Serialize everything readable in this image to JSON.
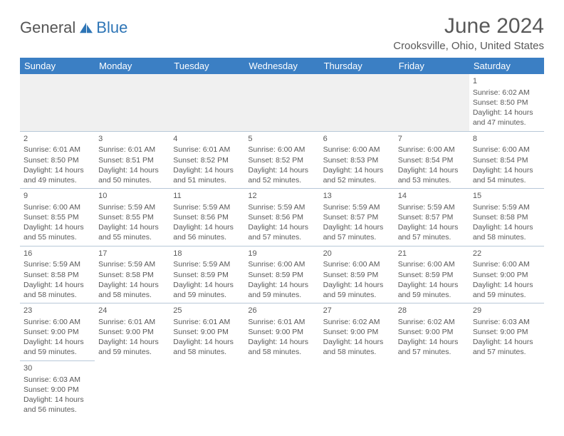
{
  "logo": {
    "text1": "General",
    "text2": "Blue"
  },
  "title": "June 2024",
  "location": "Crooksville, Ohio, United States",
  "colors": {
    "header_bg": "#3b7fc4",
    "header_fg": "#ffffff",
    "text": "#595959",
    "border": "#b8c8d8",
    "firstrow_bg": "#f0f0f0",
    "logo_blue": "#2e75b6"
  },
  "daynames": [
    "Sunday",
    "Monday",
    "Tuesday",
    "Wednesday",
    "Thursday",
    "Friday",
    "Saturday"
  ],
  "weeks": [
    [
      null,
      null,
      null,
      null,
      null,
      null,
      {
        "n": "1",
        "sr": "6:02 AM",
        "ss": "8:50 PM",
        "dl": "14 hours and 47 minutes."
      }
    ],
    [
      {
        "n": "2",
        "sr": "6:01 AM",
        "ss": "8:50 PM",
        "dl": "14 hours and 49 minutes."
      },
      {
        "n": "3",
        "sr": "6:01 AM",
        "ss": "8:51 PM",
        "dl": "14 hours and 50 minutes."
      },
      {
        "n": "4",
        "sr": "6:01 AM",
        "ss": "8:52 PM",
        "dl": "14 hours and 51 minutes."
      },
      {
        "n": "5",
        "sr": "6:00 AM",
        "ss": "8:52 PM",
        "dl": "14 hours and 52 minutes."
      },
      {
        "n": "6",
        "sr": "6:00 AM",
        "ss": "8:53 PM",
        "dl": "14 hours and 52 minutes."
      },
      {
        "n": "7",
        "sr": "6:00 AM",
        "ss": "8:54 PM",
        "dl": "14 hours and 53 minutes."
      },
      {
        "n": "8",
        "sr": "6:00 AM",
        "ss": "8:54 PM",
        "dl": "14 hours and 54 minutes."
      }
    ],
    [
      {
        "n": "9",
        "sr": "6:00 AM",
        "ss": "8:55 PM",
        "dl": "14 hours and 55 minutes."
      },
      {
        "n": "10",
        "sr": "5:59 AM",
        "ss": "8:55 PM",
        "dl": "14 hours and 55 minutes."
      },
      {
        "n": "11",
        "sr": "5:59 AM",
        "ss": "8:56 PM",
        "dl": "14 hours and 56 minutes."
      },
      {
        "n": "12",
        "sr": "5:59 AM",
        "ss": "8:56 PM",
        "dl": "14 hours and 57 minutes."
      },
      {
        "n": "13",
        "sr": "5:59 AM",
        "ss": "8:57 PM",
        "dl": "14 hours and 57 minutes."
      },
      {
        "n": "14",
        "sr": "5:59 AM",
        "ss": "8:57 PM",
        "dl": "14 hours and 57 minutes."
      },
      {
        "n": "15",
        "sr": "5:59 AM",
        "ss": "8:58 PM",
        "dl": "14 hours and 58 minutes."
      }
    ],
    [
      {
        "n": "16",
        "sr": "5:59 AM",
        "ss": "8:58 PM",
        "dl": "14 hours and 58 minutes."
      },
      {
        "n": "17",
        "sr": "5:59 AM",
        "ss": "8:58 PM",
        "dl": "14 hours and 58 minutes."
      },
      {
        "n": "18",
        "sr": "5:59 AM",
        "ss": "8:59 PM",
        "dl": "14 hours and 59 minutes."
      },
      {
        "n": "19",
        "sr": "6:00 AM",
        "ss": "8:59 PM",
        "dl": "14 hours and 59 minutes."
      },
      {
        "n": "20",
        "sr": "6:00 AM",
        "ss": "8:59 PM",
        "dl": "14 hours and 59 minutes."
      },
      {
        "n": "21",
        "sr": "6:00 AM",
        "ss": "8:59 PM",
        "dl": "14 hours and 59 minutes."
      },
      {
        "n": "22",
        "sr": "6:00 AM",
        "ss": "9:00 PM",
        "dl": "14 hours and 59 minutes."
      }
    ],
    [
      {
        "n": "23",
        "sr": "6:00 AM",
        "ss": "9:00 PM",
        "dl": "14 hours and 59 minutes."
      },
      {
        "n": "24",
        "sr": "6:01 AM",
        "ss": "9:00 PM",
        "dl": "14 hours and 59 minutes."
      },
      {
        "n": "25",
        "sr": "6:01 AM",
        "ss": "9:00 PM",
        "dl": "14 hours and 58 minutes."
      },
      {
        "n": "26",
        "sr": "6:01 AM",
        "ss": "9:00 PM",
        "dl": "14 hours and 58 minutes."
      },
      {
        "n": "27",
        "sr": "6:02 AM",
        "ss": "9:00 PM",
        "dl": "14 hours and 58 minutes."
      },
      {
        "n": "28",
        "sr": "6:02 AM",
        "ss": "9:00 PM",
        "dl": "14 hours and 57 minutes."
      },
      {
        "n": "29",
        "sr": "6:03 AM",
        "ss": "9:00 PM",
        "dl": "14 hours and 57 minutes."
      }
    ],
    [
      {
        "n": "30",
        "sr": "6:03 AM",
        "ss": "9:00 PM",
        "dl": "14 hours and 56 minutes."
      },
      null,
      null,
      null,
      null,
      null,
      null
    ]
  ],
  "labels": {
    "sunrise": "Sunrise:",
    "sunset": "Sunset:",
    "daylight": "Daylight:"
  }
}
